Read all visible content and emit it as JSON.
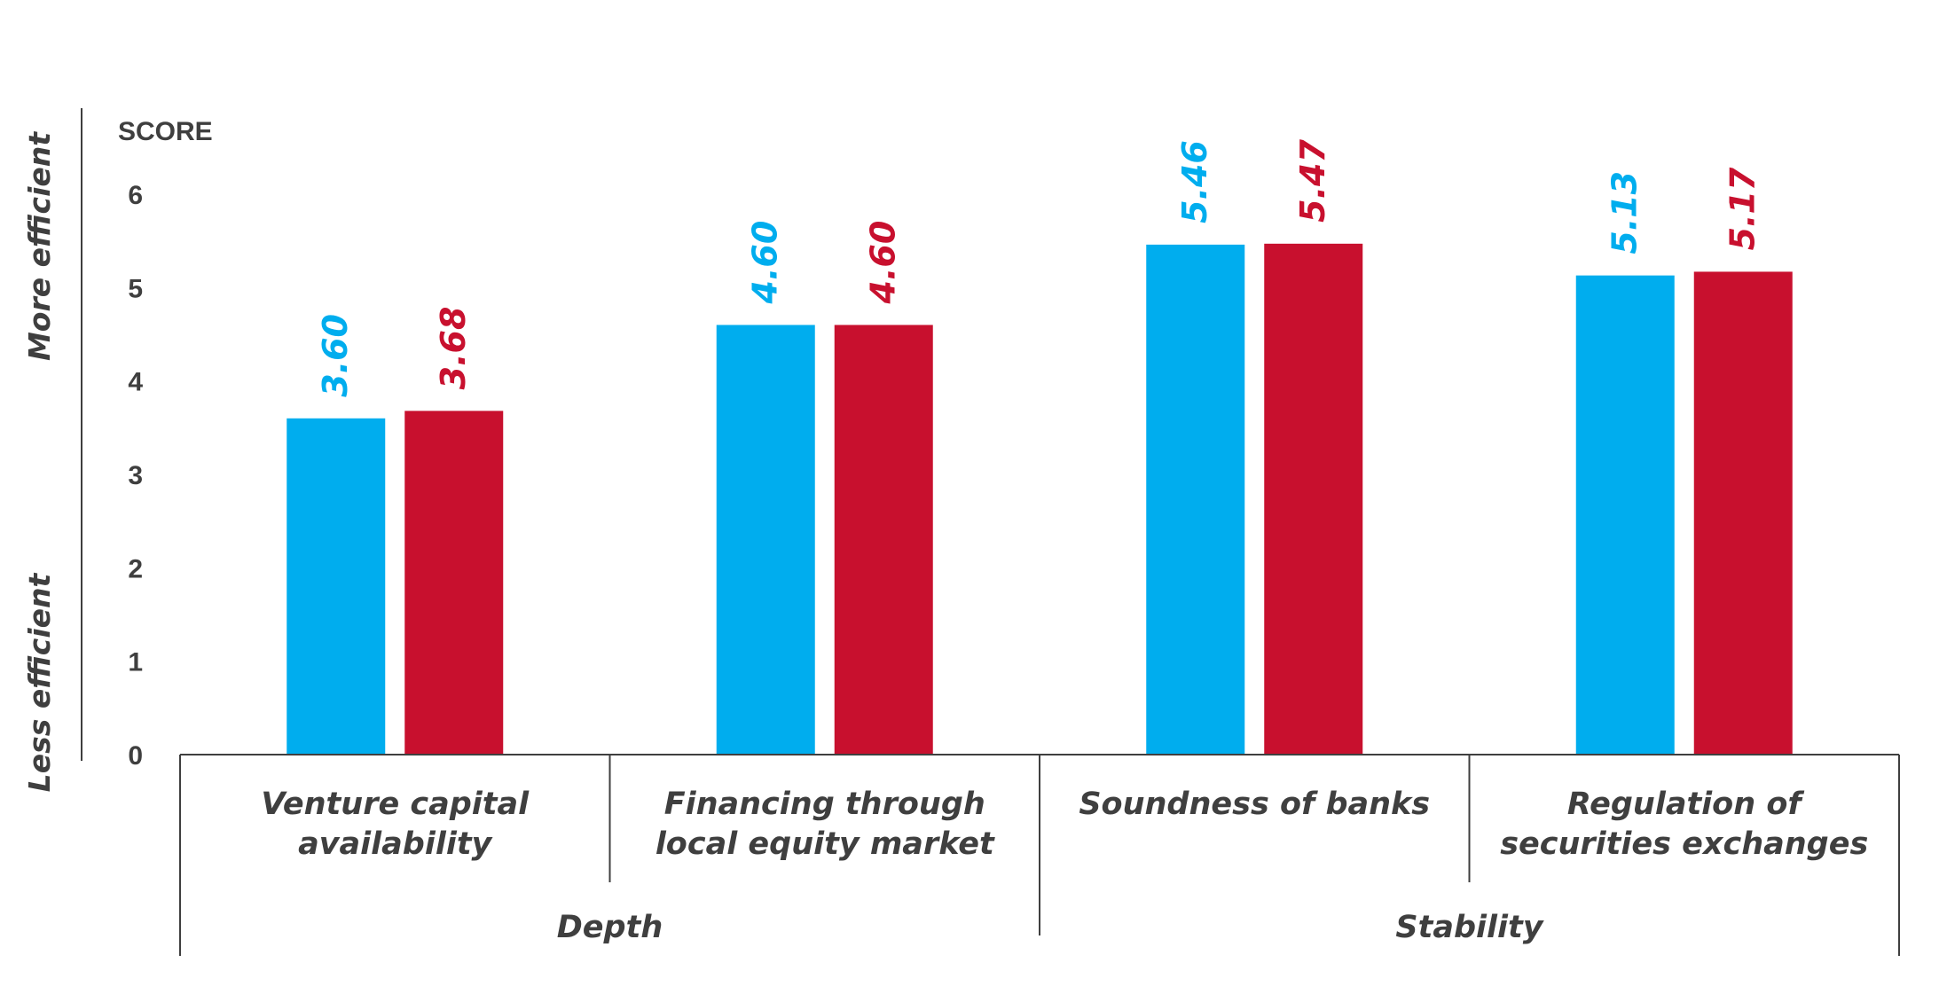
{
  "chart_data": {
    "type": "bar",
    "ylabel": "SCORE",
    "ylim": [
      0,
      6
    ],
    "yticks": [
      0,
      1,
      2,
      3,
      4,
      5,
      6
    ],
    "y_side_labels": {
      "top": "More efficient",
      "bottom": "Less efficient"
    },
    "categories": [
      [
        "Venture capital",
        "availability"
      ],
      [
        "Financing through",
        "local equity market"
      ],
      [
        "Soundness of banks"
      ],
      [
        "Regulation of",
        "securities exchanges"
      ]
    ],
    "groups": [
      {
        "label": "Depth",
        "categories": [
          0,
          1
        ]
      },
      {
        "label": "Stability",
        "categories": [
          2,
          3
        ]
      }
    ],
    "series": [
      {
        "color": "#00adee",
        "values": [
          3.6,
          4.6,
          5.46,
          5.13
        ],
        "labels": [
          "3.60",
          "4.60",
          "5.46",
          "5.13"
        ]
      },
      {
        "color": "#c8102e",
        "values": [
          3.68,
          4.6,
          5.47,
          5.17
        ],
        "labels": [
          "3.68",
          "4.60",
          "5.47",
          "5.17"
        ]
      }
    ],
    "grid": false,
    "legend": "none"
  }
}
